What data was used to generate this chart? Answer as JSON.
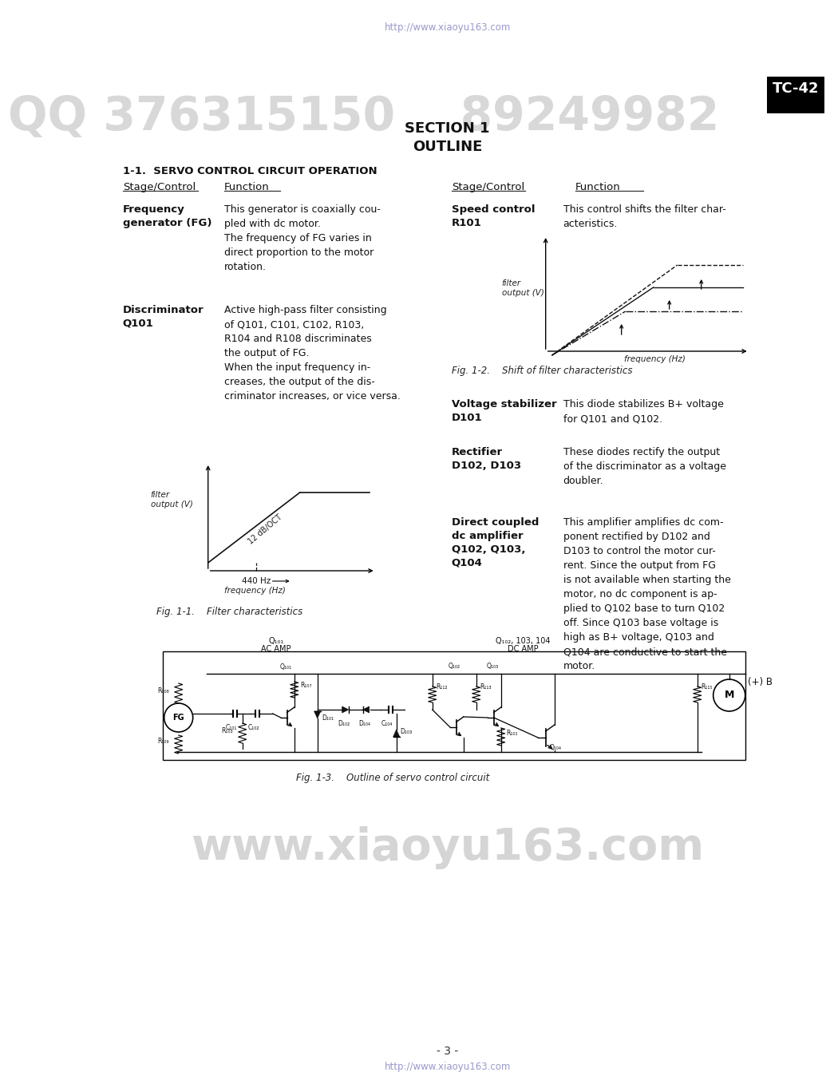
{
  "bg_color": "#ffffff",
  "url_text": "http://www.xiaoyu163.com",
  "url_color": "#9999cc",
  "watermark_text": "QQ 376315150    89249982",
  "watermark_color": "#e0e0e0",
  "watermark2_text": "www.xiaoyu163.com",
  "watermark2_color": "#dedede",
  "tc42_text": "TC-42",
  "section_title": "SECTION 1",
  "outline_title": "OUTLINE",
  "section_heading": "1-1.  SERVO CONTROL CIRCUIT OPERATION",
  "col1_header1": "Stage/Control",
  "col1_header2": "Function",
  "col2_header1": "Stage/Control",
  "col2_header2": "Function",
  "fig1_caption": "Fig. 1-1.    Filter characteristics",
  "fig2_caption": "Fig. 1-2.    Shift of filter characteristics",
  "fig3_caption": "Fig. 1-3.    Outline of servo control circuit",
  "page_number": "- 3 -"
}
